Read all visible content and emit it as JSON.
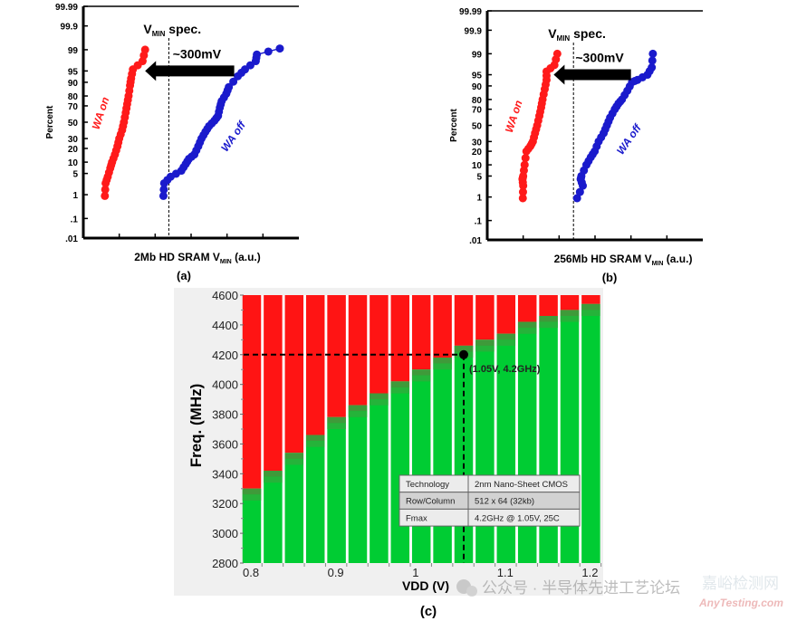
{
  "chart_data": [
    {
      "type": "scatter",
      "panel_label": "(a)",
      "xlabel_main": "2Mb HD SRAM V",
      "xlabel_sub": "MIN",
      "xlabel_tail": " (a.u.)",
      "ylabel": "Percent",
      "y_scale": "normal-probability",
      "yticks": [
        0.01,
        0.1,
        1,
        5,
        10,
        20,
        30,
        50,
        70,
        80,
        90,
        95,
        99,
        99.9,
        99.99
      ],
      "ytick_labels": [
        ".01",
        ".1",
        "1",
        "5",
        "10",
        "20",
        "30",
        "50",
        "70",
        "80",
        "90",
        "95",
        "99",
        "99.9",
        "99.99"
      ],
      "xlim": [
        0,
        6
      ],
      "vmin_spec_x": 2.38,
      "vmin_spec_label_main": "V",
      "vmin_spec_label_sub": "MIN",
      "vmin_spec_label_tail": " spec.",
      "shift_label": "~300mV",
      "arrow": {
        "from": 4.2,
        "to": 1.72,
        "at_percent": 95
      },
      "series": [
        {
          "name": "WA on",
          "color": "#ff1a1a",
          "points": [
            [
              0.6,
              0.9
            ],
            [
              0.62,
              2.5
            ],
            [
              0.68,
              4
            ],
            [
              0.75,
              7
            ],
            [
              0.8,
              10
            ],
            [
              0.88,
              15
            ],
            [
              0.95,
              22
            ],
            [
              1.0,
              30
            ],
            [
              1.08,
              40
            ],
            [
              1.13,
              50
            ],
            [
              1.18,
              62
            ],
            [
              1.22,
              72
            ],
            [
              1.26,
              80
            ],
            [
              1.3,
              88
            ],
            [
              1.33,
              92
            ],
            [
              1.38,
              95.5
            ],
            [
              1.65,
              97.5
            ],
            [
              1.72,
              99
            ]
          ]
        },
        {
          "name": "WA off",
          "color": "#1a1acc",
          "points": [
            [
              2.23,
              0.9
            ],
            [
              2.25,
              2.5
            ],
            [
              2.43,
              4
            ],
            [
              2.73,
              6
            ],
            [
              2.85,
              9
            ],
            [
              2.94,
              12
            ],
            [
              3.09,
              15
            ],
            [
              3.2,
              22
            ],
            [
              3.29,
              30
            ],
            [
              3.4,
              38
            ],
            [
              3.5,
              45
            ],
            [
              3.65,
              52
            ],
            [
              3.75,
              58
            ],
            [
              3.8,
              68
            ],
            [
              3.85,
              75
            ],
            [
              3.98,
              82
            ],
            [
              4.05,
              87
            ],
            [
              4.3,
              93
            ],
            [
              4.5,
              95.5
            ],
            [
              4.8,
              97.5
            ],
            [
              4.83,
              98.5
            ],
            [
              5.47,
              99.1
            ]
          ]
        }
      ]
    },
    {
      "type": "scatter",
      "panel_label": "(b)",
      "xlabel_main": "256Mb HD SRAM V",
      "xlabel_sub": "MIN",
      "xlabel_tail": " (a.u.)",
      "ylabel": "Percent",
      "y_scale": "normal-probability",
      "yticks": [
        0.01,
        0.1,
        1,
        5,
        10,
        20,
        30,
        50,
        70,
        80,
        90,
        95,
        99,
        99.9,
        99.99
      ],
      "ytick_labels": [
        ".01",
        ".1",
        "1",
        "5",
        "10",
        "20",
        "30",
        "50",
        "70",
        "80",
        "90",
        "95",
        "99",
        "99.9",
        "99.99"
      ],
      "xlim": [
        0,
        6
      ],
      "vmin_spec_x": 2.4,
      "vmin_spec_label_main": "V",
      "vmin_spec_label_sub": "MIN",
      "vmin_spec_label_tail": " spec.",
      "shift_label": "~300mV",
      "arrow": {
        "from": 4.0,
        "to": 1.85,
        "at_percent": 95
      },
      "series": [
        {
          "name": "WA on",
          "color": "#ff1a1a",
          "points": [
            [
              0.99,
              0.9
            ],
            [
              1.0,
              2.5
            ],
            [
              0.98,
              4
            ],
            [
              1.0,
              5
            ],
            [
              1.04,
              10
            ],
            [
              1.09,
              20
            ],
            [
              1.2,
              25
            ],
            [
              1.27,
              30
            ],
            [
              1.33,
              40
            ],
            [
              1.39,
              50
            ],
            [
              1.45,
              62
            ],
            [
              1.5,
              72
            ],
            [
              1.54,
              80
            ],
            [
              1.6,
              88
            ],
            [
              1.65,
              93
            ],
            [
              1.65,
              96
            ],
            [
              1.87,
              97.5
            ],
            [
              1.95,
              99
            ]
          ]
        },
        {
          "name": "WA off",
          "color": "#1a1acc",
          "points": [
            [
              2.5,
              0.9
            ],
            [
              2.66,
              2.5
            ],
            [
              2.6,
              4
            ],
            [
              2.62,
              5
            ],
            [
              2.76,
              10
            ],
            [
              2.88,
              15
            ],
            [
              2.99,
              20
            ],
            [
              3.1,
              30
            ],
            [
              3.24,
              40
            ],
            [
              3.33,
              50
            ],
            [
              3.42,
              60
            ],
            [
              3.55,
              70
            ],
            [
              3.65,
              76
            ],
            [
              3.75,
              80
            ],
            [
              3.9,
              87
            ],
            [
              4.03,
              92
            ],
            [
              4.18,
              93
            ],
            [
              4.46,
              95
            ],
            [
              4.58,
              97
            ],
            [
              4.61,
              99
            ]
          ]
        }
      ]
    },
    {
      "type": "bar",
      "panel_label": "(c)",
      "xlabel": "VDD (V)",
      "ylabel": "Freq. (MHz)",
      "ylim": [
        2800,
        4600
      ],
      "yticks": [
        2800,
        3000,
        3200,
        3400,
        3600,
        3800,
        4000,
        4200,
        4400,
        4600
      ],
      "xtick_labels": [
        "0.8",
        "0.9",
        "1",
        "1.1",
        "1.2"
      ],
      "xtick_values": [
        0.8,
        0.9,
        1.0,
        1.1,
        1.2
      ],
      "categories": [
        0.8,
        0.825,
        0.85,
        0.875,
        0.9,
        0.925,
        0.95,
        0.975,
        1.0,
        1.025,
        1.05,
        1.075,
        1.1,
        1.125,
        1.15,
        1.175,
        1.2
      ],
      "series": [
        {
          "name": "pass",
          "color": "#00cc33",
          "values": [
            3300,
            3420,
            3540,
            3660,
            3780,
            3860,
            3940,
            4020,
            4100,
            4180,
            4260,
            4300,
            4340,
            4420,
            4460,
            4500,
            4540
          ]
        },
        {
          "name": "fail",
          "color": "#ff1414"
        }
      ],
      "marker": {
        "x": 1.05,
        "y": 4200,
        "label": "(1.05V, 4.2GHz)"
      },
      "info_table": [
        [
          "Technology",
          "2nm Nano-Sheet CMOS"
        ],
        [
          "Row/Column",
          "512 x 64 (32kb)"
        ],
        [
          "Fmax",
          "4.2GHz @ 1.05V, 25C"
        ]
      ]
    }
  ],
  "watermark": {
    "text": "公众号 · 半导体先进工艺论坛",
    "logo_text": "嘉峪检测网",
    "logo_sub": "AnyTesting.com"
  }
}
